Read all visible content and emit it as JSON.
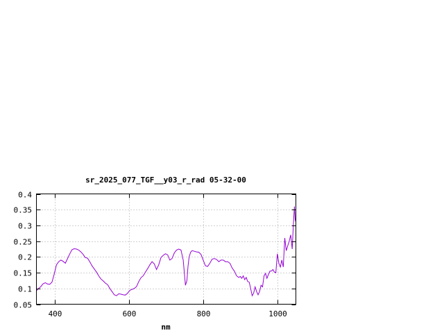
{
  "chart_data": {
    "type": "line",
    "title": "sr_2025_077_TGF__y03_r_rad 05-32-00",
    "xlabel": "nm",
    "ylabel": "",
    "xlim": [
      350,
      1050
    ],
    "ylim": [
      0.05,
      0.4
    ],
    "grid": true,
    "x_ticks": [
      400,
      600,
      800,
      1000
    ],
    "y_ticks": [
      0.05,
      0.1,
      0.15,
      0.2,
      0.25,
      0.3,
      0.35,
      0.4
    ],
    "x_tick_labels": [
      "400",
      "600",
      "800",
      "1000"
    ],
    "y_tick_labels": [
      "0.05",
      "0.1",
      "0.15",
      "0.2",
      "0.25",
      "0.3",
      "0.35",
      "0.4"
    ],
    "series": [
      {
        "color": "#9400d3",
        "x": [
          350,
          356,
          362,
          368,
          374,
          380,
          386,
          392,
          398,
          404,
          410,
          416,
          422,
          428,
          434,
          440,
          446,
          452,
          458,
          464,
          470,
          476,
          482,
          488,
          494,
          500,
          506,
          512,
          518,
          524,
          530,
          536,
          542,
          548,
          554,
          560,
          566,
          572,
          578,
          584,
          590,
          596,
          602,
          608,
          614,
          620,
          626,
          632,
          638,
          644,
          650,
          656,
          662,
          668,
          674,
          680,
          686,
          692,
          698,
          704,
          710,
          716,
          722,
          728,
          734,
          740,
          746,
          752,
          756,
          759,
          762,
          766,
          770,
          776,
          782,
          788,
          794,
          800,
          806,
          812,
          818,
          824,
          830,
          836,
          842,
          848,
          854,
          860,
          866,
          872,
          878,
          884,
          890,
          896,
          900,
          904,
          908,
          912,
          916,
          920,
          924,
          928,
          932,
          936,
          940,
          944,
          948,
          952,
          956,
          960,
          964,
          968,
          972,
          976,
          980,
          984,
          988,
          992,
          996,
          1000,
          1004,
          1008,
          1012,
          1016,
          1020,
          1024,
          1028,
          1032,
          1036,
          1040,
          1043,
          1046,
          1048,
          1050
        ],
        "y": [
          0.093,
          0.1,
          0.106,
          0.115,
          0.118,
          0.114,
          0.113,
          0.12,
          0.145,
          0.175,
          0.185,
          0.19,
          0.186,
          0.18,
          0.195,
          0.21,
          0.223,
          0.226,
          0.225,
          0.222,
          0.216,
          0.208,
          0.198,
          0.196,
          0.185,
          0.172,
          0.162,
          0.152,
          0.14,
          0.13,
          0.124,
          0.117,
          0.112,
          0.1,
          0.09,
          0.08,
          0.077,
          0.083,
          0.082,
          0.08,
          0.079,
          0.085,
          0.094,
          0.097,
          0.1,
          0.106,
          0.122,
          0.134,
          0.14,
          0.152,
          0.163,
          0.175,
          0.185,
          0.178,
          0.16,
          0.175,
          0.198,
          0.205,
          0.21,
          0.207,
          0.19,
          0.195,
          0.213,
          0.222,
          0.225,
          0.222,
          0.19,
          0.11,
          0.125,
          0.17,
          0.2,
          0.215,
          0.22,
          0.218,
          0.216,
          0.215,
          0.208,
          0.19,
          0.172,
          0.17,
          0.18,
          0.193,
          0.195,
          0.192,
          0.185,
          0.19,
          0.19,
          0.185,
          0.185,
          0.18,
          0.165,
          0.155,
          0.14,
          0.135,
          0.138,
          0.132,
          0.14,
          0.128,
          0.135,
          0.122,
          0.12,
          0.1,
          0.077,
          0.085,
          0.105,
          0.09,
          0.08,
          0.09,
          0.11,
          0.105,
          0.14,
          0.148,
          0.132,
          0.145,
          0.155,
          0.155,
          0.16,
          0.152,
          0.15,
          0.21,
          0.18,
          0.168,
          0.19,
          0.168,
          0.26,
          0.22,
          0.235,
          0.25,
          0.27,
          0.225,
          0.3,
          0.36,
          0.32,
          0.31
        ]
      }
    ]
  }
}
